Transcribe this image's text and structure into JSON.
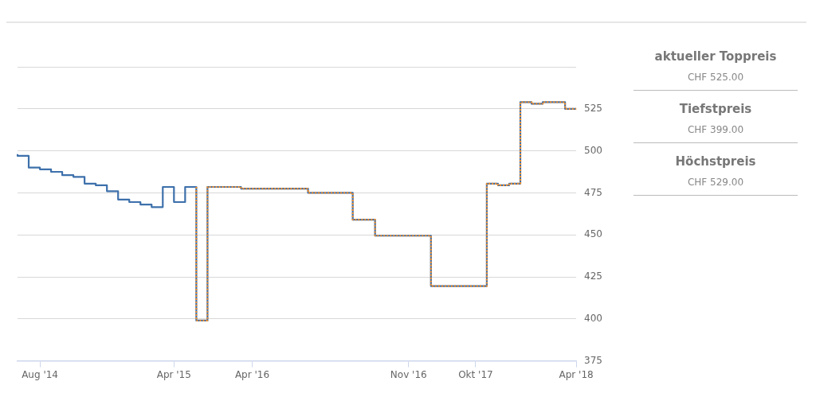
{
  "chart_data": [
    {
      "type": "step",
      "grid": "y",
      "marker": "none",
      "legend": false,
      "categories": [
        null,
        null,
        "Aug '14",
        null,
        null,
        null,
        null,
        null,
        null,
        null,
        null,
        null,
        null,
        null,
        "Apr '15",
        null,
        null,
        null,
        null,
        null,
        null,
        "Apr '16",
        null,
        null,
        null,
        null,
        null,
        null,
        null,
        null,
        null,
        null,
        null,
        null,
        null,
        "Nov '16",
        null,
        null,
        null,
        null,
        null,
        "Okt '17",
        null,
        null,
        null,
        null,
        null,
        null,
        null,
        null,
        "Apr '18"
      ],
      "ylim": [
        375,
        550
      ],
      "yticks": [
        375,
        400,
        425,
        450,
        475,
        500,
        525,
        {
          "value": 550,
          "label": null
        }
      ],
      "series": [
        {
          "color": "#3d70ab",
          "line_style": "solid",
          "values": [
            498,
            497,
            490,
            489,
            487.5,
            485.5,
            484.5,
            480.5,
            479.5,
            476,
            471,
            469.5,
            468,
            466.5,
            478.5,
            469.5,
            478.5,
            399,
            478.5,
            478.5,
            478.5,
            477.5,
            477.5,
            477.5,
            477.5,
            477.5,
            477.5,
            475,
            475,
            475,
            475,
            459,
            459,
            449.5,
            449.5,
            449.5,
            449.5,
            449.5,
            419.5,
            419.5,
            419.5,
            419.5,
            419.5,
            480.5,
            479.5,
            480.5,
            529,
            528,
            529,
            529,
            525
          ]
        },
        {
          "color": "#f28f2c",
          "line_style": "dotted",
          "values": [
            null,
            null,
            null,
            null,
            null,
            null,
            null,
            null,
            null,
            null,
            null,
            null,
            null,
            null,
            null,
            null,
            478.5,
            399,
            478.5,
            478.5,
            478.5,
            477.5,
            477.5,
            477.5,
            477.5,
            477.5,
            477.5,
            475,
            475,
            475,
            475,
            459,
            459,
            449.5,
            449.5,
            449.5,
            449.5,
            449.5,
            419.5,
            419.5,
            419.5,
            419.5,
            419.5,
            480.5,
            479.5,
            480.5,
            529,
            528,
            529,
            529,
            525
          ]
        }
      ]
    },
    {
      "type": "other",
      "annotations": [
        "aktueller Toppreis",
        "CHF 525.00",
        "Tiefstpreis",
        "CHF 399.00",
        "Höchstpreis",
        "CHF 529.00"
      ]
    }
  ]
}
